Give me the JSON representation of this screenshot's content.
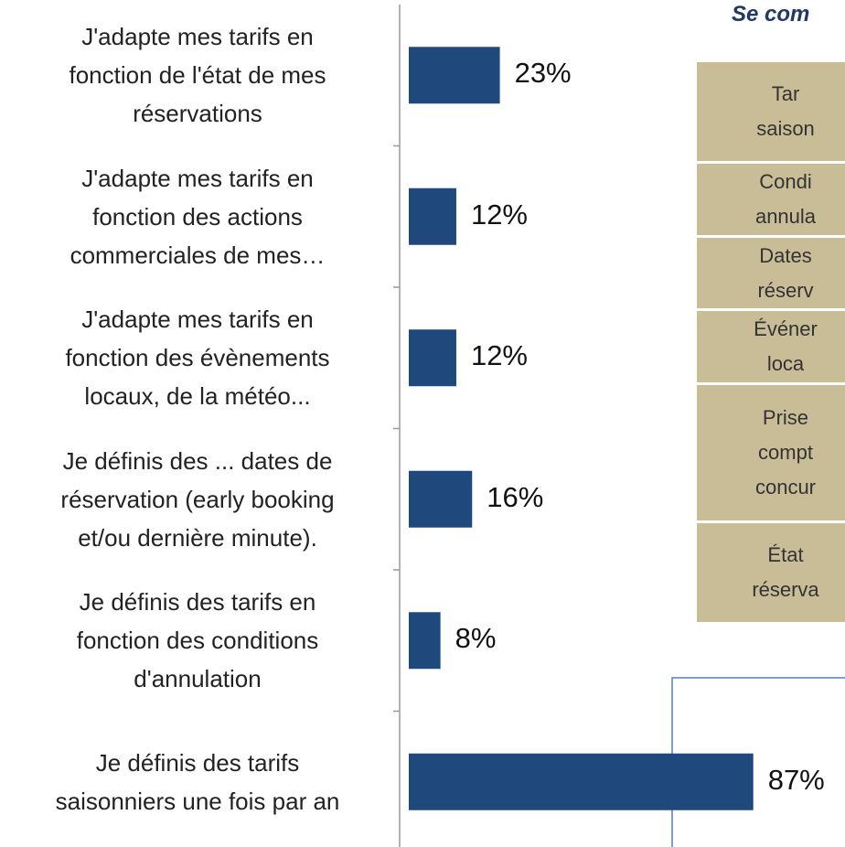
{
  "chart_data": {
    "type": "barh",
    "categories": [
      "J'adapte mes tarifs en\nfonction de l'état de mes\nréservations",
      "J'adapte mes tarifs en\nfonction des actions\ncommerciales de mes…",
      "J'adapte mes tarifs en\nfonction des évènements\nlocaux, de la météo...",
      "Je définis des  ... dates de\nréservation (early booking\net/ou  dernière minute).",
      "Je définis des tarifs en\nfonction des conditions\nd'annulation",
      "Je définis des tarifs\nsaisonniers une fois par an"
    ],
    "values": [
      23,
      12,
      12,
      16,
      8,
      87
    ],
    "value_labels": [
      "23%",
      "12%",
      "12%",
      "16%",
      "8%",
      "87%"
    ],
    "color": "#1f497d",
    "xlim": [
      0,
      100
    ]
  },
  "table": {
    "title": "Se com",
    "rows": [
      [
        "Tar",
        "saison"
      ],
      [
        "Condi",
        "annula"
      ],
      [
        "Dates",
        "réserv"
      ],
      [
        "Événer",
        "loca"
      ],
      [
        "Prise",
        "compt",
        "concur"
      ],
      [
        "État",
        "réserva"
      ]
    ]
  }
}
